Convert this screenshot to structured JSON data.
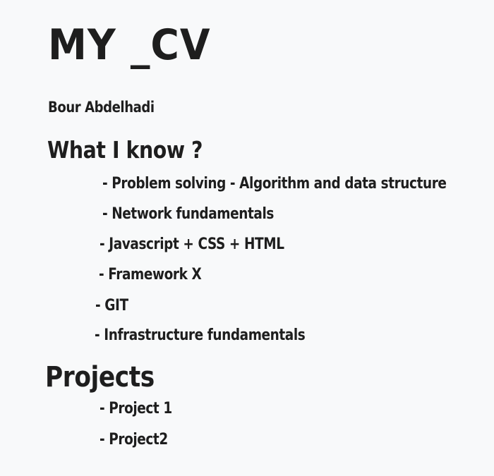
{
  "title": "MY _CV",
  "author": "Bour Abdelhadi",
  "skills": {
    "heading": "What I know ?",
    "items": [
      "- Problem solving - Algorithm and data structure",
      "- Network fundamentals",
      "- Javascript + CSS + HTML",
      "- Framework X",
      "- GIT",
      "- Infrastructure fundamentals"
    ]
  },
  "projects": {
    "heading": "Projects",
    "items": [
      "- Project 1",
      "- Project2"
    ]
  }
}
